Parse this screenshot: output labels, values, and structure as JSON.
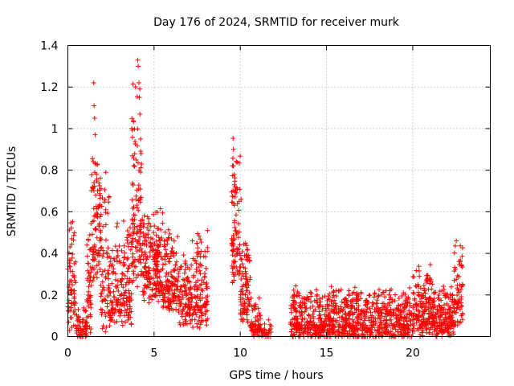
{
  "chart_data": {
    "type": "scatter",
    "title": "Day 176 of 2024, SRMTID for receiver murk",
    "xlabel": "GPS time / hours",
    "ylabel": "SRMTID / TECUs",
    "xlim": [
      0,
      24.5
    ],
    "ylim": [
      0,
      1.4
    ],
    "grid": true,
    "marker": "+",
    "color": "#ff0000",
    "x_ticks": [
      0,
      5,
      10,
      15,
      20
    ],
    "x_tick_labels": [
      "0",
      "5",
      "10",
      "15",
      "20"
    ],
    "y_ticks": [
      0,
      0.2,
      0.4,
      0.6,
      0.8,
      1.0,
      1.2,
      1.4
    ],
    "y_tick_labels": [
      "0",
      "0.2",
      "0.4",
      "0.6",
      "0.8",
      "1",
      "1.2",
      "1.4"
    ],
    "series": [
      {
        "name": "SRMTID",
        "segments": [
          {
            "t0": 0.0,
            "t1": 0.45,
            "base": 0.18,
            "spread": 0.28,
            "n": 70
          },
          {
            "t0": 0.5,
            "t1": 1.1,
            "base": 0.03,
            "spread": 0.08,
            "n": 60
          },
          {
            "t0": 1.1,
            "t1": 1.35,
            "base": 0.2,
            "spread": 0.3,
            "n": 45
          },
          {
            "t0": 1.35,
            "t1": 1.9,
            "base": 0.45,
            "spread": 0.35,
            "n": 90
          },
          {
            "t0": 1.9,
            "t1": 2.4,
            "base": 0.25,
            "spread": 0.35,
            "n": 70
          },
          {
            "t0": 2.4,
            "t1": 3.7,
            "base": 0.2,
            "spread": 0.25,
            "n": 170
          },
          {
            "t0": 3.7,
            "t1": 4.3,
            "base": 0.55,
            "spread": 0.5,
            "n": 110
          },
          {
            "t0": 4.3,
            "t1": 5.5,
            "base": 0.3,
            "spread": 0.22,
            "n": 200
          },
          {
            "t0": 5.5,
            "t1": 6.4,
            "base": 0.25,
            "spread": 0.2,
            "n": 140
          },
          {
            "t0": 6.4,
            "t1": 7.2,
            "base": 0.15,
            "spread": 0.18,
            "n": 100
          },
          {
            "t0": 7.2,
            "t1": 8.1,
            "base": 0.18,
            "spread": 0.22,
            "n": 120
          },
          {
            "t0": 9.5,
            "t1": 10.0,
            "base": 0.45,
            "spread": 0.35,
            "n": 90
          },
          {
            "t0": 10.0,
            "t1": 10.6,
            "base": 0.18,
            "spread": 0.2,
            "n": 90
          },
          {
            "t0": 10.6,
            "t1": 11.2,
            "base": 0.06,
            "spread": 0.1,
            "n": 60
          },
          {
            "t0": 11.2,
            "t1": 11.8,
            "base": 0.02,
            "spread": 0.05,
            "n": 30
          },
          {
            "t0": 12.9,
            "t1": 20.0,
            "base": 0.06,
            "spread": 0.12,
            "n": 900
          },
          {
            "t0": 20.0,
            "t1": 21.2,
            "base": 0.1,
            "spread": 0.16,
            "n": 180
          },
          {
            "t0": 21.2,
            "t1": 22.4,
            "base": 0.07,
            "spread": 0.12,
            "n": 160
          },
          {
            "t0": 22.4,
            "t1": 22.9,
            "base": 0.18,
            "spread": 0.2,
            "n": 70
          }
        ],
        "peaks": [
          {
            "x": 1.5,
            "y": 1.22
          },
          {
            "x": 1.52,
            "y": 1.11
          },
          {
            "x": 1.55,
            "y": 1.05
          },
          {
            "x": 1.58,
            "y": 0.97
          },
          {
            "x": 1.6,
            "y": 0.83
          },
          {
            "x": 2.2,
            "y": 0.79
          },
          {
            "x": 4.05,
            "y": 1.33
          },
          {
            "x": 4.08,
            "y": 1.3
          },
          {
            "x": 4.12,
            "y": 1.22
          },
          {
            "x": 4.15,
            "y": 1.15
          },
          {
            "x": 4.18,
            "y": 1.07
          },
          {
            "x": 4.22,
            "y": 0.95
          },
          {
            "x": 4.25,
            "y": 0.88
          },
          {
            "x": 3.95,
            "y": 0.66
          },
          {
            "x": 9.6,
            "y": 0.9
          },
          {
            "x": 9.65,
            "y": 0.78
          },
          {
            "x": 9.7,
            "y": 0.72
          },
          {
            "x": 10.05,
            "y": 0.66
          },
          {
            "x": 8.1,
            "y": 0.51
          },
          {
            "x": 22.75,
            "y": 0.36
          },
          {
            "x": 15.7,
            "y": 0.22
          },
          {
            "x": 20.3,
            "y": 0.25
          }
        ]
      }
    ]
  }
}
